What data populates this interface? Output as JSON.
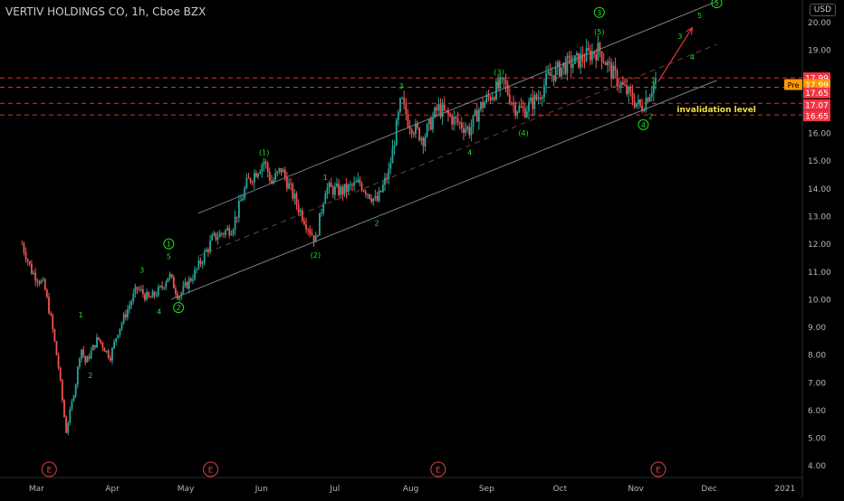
{
  "header": {
    "symbol_title": "VERTIV HOLDINGS CO, 1h, Cboe BZX",
    "currency": "USD"
  },
  "colors": {
    "background": "#000000",
    "up": "#26a69a",
    "down": "#ef5350",
    "wave_label": "#22dd22",
    "level_line": "#e03030",
    "channel": "#9aa0a6",
    "arrow": "#e03b3b",
    "note": "#f0e040"
  },
  "chart_data": {
    "type": "candlestick",
    "title": "VERTIV HOLDINGS CO, 1h, Cboe BZX",
    "ylim": [
      3.6,
      20.8
    ],
    "y_ticks": [
      "4.00",
      "5.00",
      "6.00",
      "7.00",
      "8.00",
      "9.00",
      "10.00",
      "11.00",
      "12.00",
      "13.00",
      "14.00",
      "15.00",
      "16.00",
      "17.00",
      "18.00",
      "19.00",
      "20.00"
    ],
    "x_ticks": [
      "Mar",
      "Apr",
      "May",
      "Jun",
      "Jul",
      "Aug",
      "Sep",
      "Oct",
      "Nov",
      "Dec",
      "2021"
    ],
    "price_path": [
      [
        "2020-03-01",
        12.0
      ],
      [
        "2020-03-05",
        11.0
      ],
      [
        "2020-03-10",
        10.5
      ],
      [
        "2020-03-13",
        9.2
      ],
      [
        "2020-03-16",
        7.5
      ],
      [
        "2020-03-19",
        5.2
      ],
      [
        "2020-03-23",
        7.0
      ],
      [
        "2020-03-25",
        8.3
      ],
      [
        "2020-03-27",
        7.7
      ],
      [
        "2020-04-01",
        8.6
      ],
      [
        "2020-04-06",
        7.9
      ],
      [
        "2020-04-09",
        8.8
      ],
      [
        "2020-04-14",
        9.8
      ],
      [
        "2020-04-17",
        10.4
      ],
      [
        "2020-04-22",
        10.0
      ],
      [
        "2020-04-27",
        10.4
      ],
      [
        "2020-04-30",
        10.9
      ],
      [
        "2020-05-04",
        10.1
      ],
      [
        "2020-05-11",
        11.0
      ],
      [
        "2020-05-18",
        12.2
      ],
      [
        "2020-05-26",
        12.6
      ],
      [
        "2020-06-01",
        14.2
      ],
      [
        "2020-06-08",
        15.0
      ],
      [
        "2020-06-11",
        14.2
      ],
      [
        "2020-06-15",
        14.7
      ],
      [
        "2020-06-22",
        13.3
      ],
      [
        "2020-06-29",
        12.1
      ],
      [
        "2020-07-03",
        14.0
      ],
      [
        "2020-07-10",
        13.9
      ],
      [
        "2020-07-17",
        14.2
      ],
      [
        "2020-07-24",
        13.5
      ],
      [
        "2020-07-29",
        14.6
      ],
      [
        "2020-08-03",
        17.2
      ],
      [
        "2020-08-06",
        16.4
      ],
      [
        "2020-08-12",
        15.8
      ],
      [
        "2020-08-18",
        16.9
      ],
      [
        "2020-08-24",
        16.5
      ],
      [
        "2020-08-31",
        16.1
      ],
      [
        "2020-09-04",
        16.9
      ],
      [
        "2020-09-10",
        17.5
      ],
      [
        "2020-09-14",
        17.8
      ],
      [
        "2020-09-18",
        17.0
      ],
      [
        "2020-09-22",
        16.8
      ],
      [
        "2020-09-28",
        17.3
      ],
      [
        "2020-10-02",
        18.0
      ],
      [
        "2020-10-08",
        18.4
      ],
      [
        "2020-10-14",
        18.6
      ],
      [
        "2020-10-20",
        18.9
      ],
      [
        "2020-10-23",
        19.0
      ],
      [
        "2020-10-28",
        18.2
      ],
      [
        "2020-11-02",
        17.6
      ],
      [
        "2020-11-06",
        17.2
      ],
      [
        "2020-11-09",
        16.9
      ],
      [
        "2020-11-12",
        17.4
      ],
      [
        "2020-11-15",
        17.9
      ]
    ],
    "horizontal_levels": [
      17.99,
      17.65,
      17.07,
      16.65
    ],
    "price_badges": [
      {
        "label": "",
        "value": "17.99",
        "color": "#f23645",
        "y": 17.99
      },
      {
        "label": "Pre",
        "value": "17.99",
        "color": "#ff9800",
        "y": 17.75
      },
      {
        "label": "",
        "value": "17.65",
        "color": "#f23645",
        "y": 17.45
      },
      {
        "label": "",
        "value": "17.07",
        "color": "#f23645",
        "y": 17.02
      },
      {
        "label": "",
        "value": "16.65",
        "color": "#f23645",
        "y": 16.62
      }
    ],
    "wave_labels": [
      {
        "text": "1",
        "date": "2020-03-25",
        "y": 9.45,
        "circled": false
      },
      {
        "text": "2",
        "date": "2020-03-29",
        "y": 7.25,
        "circled": false
      },
      {
        "text": "3",
        "date": "2020-04-19",
        "y": 11.05,
        "circled": false
      },
      {
        "text": "4",
        "date": "2020-04-26",
        "y": 9.55,
        "circled": false
      },
      {
        "text": "5",
        "date": "2020-04-30",
        "y": 11.55,
        "circled": false
      },
      {
        "text": "1",
        "date": "2020-04-30",
        "y": 12.0,
        "circled": true
      },
      {
        "text": "2",
        "date": "2020-05-04",
        "y": 9.7,
        "circled": true
      },
      {
        "text": "(1)",
        "date": "2020-06-08",
        "y": 15.3,
        "circled": false
      },
      {
        "text": "(2)",
        "date": "2020-06-29",
        "y": 11.6,
        "circled": false
      },
      {
        "text": "1",
        "date": "2020-07-03",
        "y": 14.4,
        "circled": false
      },
      {
        "text": "2",
        "date": "2020-07-24",
        "y": 12.75,
        "circled": false
      },
      {
        "text": "3",
        "date": "2020-08-03",
        "y": 17.7,
        "circled": false
      },
      {
        "text": "4",
        "date": "2020-08-31",
        "y": 15.3,
        "circled": false
      },
      {
        "text": "(3)",
        "date": "2020-09-12",
        "y": 18.2,
        "circled": false
      },
      {
        "text": "5",
        "date": "2020-09-12",
        "y": 17.85,
        "circled": false
      },
      {
        "text": "(4)",
        "date": "2020-09-22",
        "y": 16.0,
        "circled": false
      },
      {
        "text": "3",
        "date": "2020-10-23",
        "y": 20.35,
        "circled": true
      },
      {
        "text": "(5)",
        "date": "2020-10-23",
        "y": 19.65,
        "circled": false
      },
      {
        "text": "1",
        "date": "2020-11-14",
        "y": 17.9,
        "circled": false
      },
      {
        "text": "2",
        "date": "2020-11-13",
        "y": 16.6,
        "circled": false
      },
      {
        "text": "4",
        "date": "2020-11-10",
        "y": 16.3,
        "circled": true
      },
      {
        "text": "3",
        "date": "2020-11-25",
        "y": 19.5,
        "circled": false
      },
      {
        "text": "4",
        "date": "2020-11-30",
        "y": 18.75,
        "circled": false
      },
      {
        "text": "5",
        "date": "2020-12-03",
        "y": 20.25,
        "circled": false
      },
      {
        "text": "5",
        "date": "2020-12-10",
        "y": 20.7,
        "circled": true
      }
    ],
    "channel": {
      "upper": [
        [
          "2020-05-12",
          13.1
        ],
        [
          "2020-12-10",
          20.75
        ]
      ],
      "middle": [
        [
          "2020-05-12",
          11.55
        ],
        [
          "2020-12-10",
          19.2
        ]
      ],
      "lower": [
        [
          "2020-05-01",
          10.0
        ],
        [
          "2020-12-10",
          17.9
        ]
      ]
    },
    "projection_arrow": [
      [
        "2020-11-16",
        17.85
      ],
      [
        "2020-11-30",
        19.8
      ]
    ],
    "annotation": {
      "text": "invalidation level",
      "date": "2020-11-20",
      "y": 16.85
    },
    "earnings_markers": [
      "2020-03-01",
      "2020-05-06",
      "2020-08-07",
      "2020-11-05"
    ],
    "earnings_label": "E"
  }
}
